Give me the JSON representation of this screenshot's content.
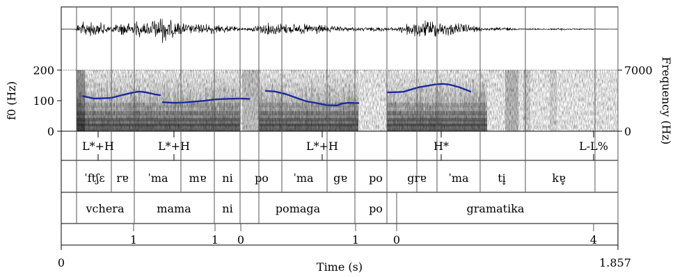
{
  "axes": {
    "left_label": "f0 (Hz)",
    "left_ticks": [
      "200",
      "100",
      "0"
    ],
    "right_label": "Frequency (Hz)",
    "right_ticks": [
      "7000",
      "0"
    ],
    "x_label": "Time (s)",
    "x_start": "0",
    "x_end": "1.857"
  },
  "tiers": {
    "tones": [
      "L*+H",
      "L*+H",
      "L*+H",
      "H*",
      "L-L%"
    ],
    "syllables": [
      "ˈftʃɛ",
      "rɐ",
      "ˈma",
      "mɐ",
      "ni",
      "po",
      "ˈma",
      "gɐ",
      "po",
      "grɐ",
      "ˈma",
      "ti̥",
      "kɐ̥"
    ],
    "words": [
      "vchera",
      "mama",
      "ni",
      "pomaga",
      "po",
      "gramatika"
    ],
    "breaks": [
      "1",
      "1",
      "0",
      "1",
      "0",
      "4"
    ]
  },
  "colors": {
    "pitch_track": "#1a2a9c",
    "waveform": "#000000",
    "grid_line": "#555555"
  }
}
